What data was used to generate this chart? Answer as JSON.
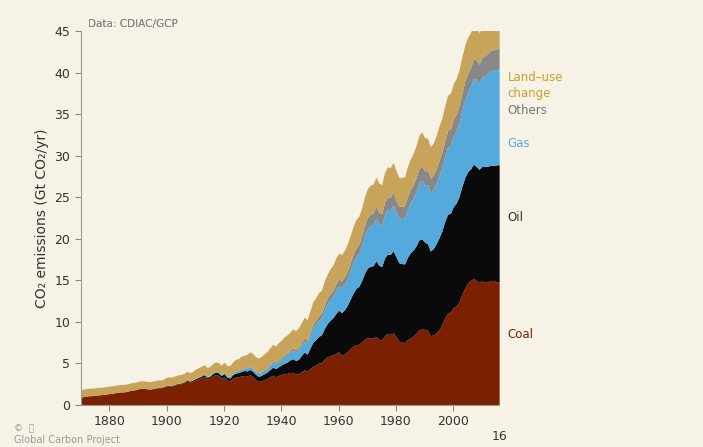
{
  "years": [
    1870,
    1871,
    1872,
    1873,
    1874,
    1875,
    1876,
    1877,
    1878,
    1879,
    1880,
    1881,
    1882,
    1883,
    1884,
    1885,
    1886,
    1887,
    1888,
    1889,
    1890,
    1891,
    1892,
    1893,
    1894,
    1895,
    1896,
    1897,
    1898,
    1899,
    1900,
    1901,
    1902,
    1903,
    1904,
    1905,
    1906,
    1907,
    1908,
    1909,
    1910,
    1911,
    1912,
    1913,
    1914,
    1915,
    1916,
    1917,
    1918,
    1919,
    1920,
    1921,
    1922,
    1923,
    1924,
    1925,
    1926,
    1927,
    1928,
    1929,
    1930,
    1931,
    1932,
    1933,
    1934,
    1935,
    1936,
    1937,
    1938,
    1939,
    1940,
    1941,
    1942,
    1943,
    1944,
    1945,
    1946,
    1947,
    1948,
    1949,
    1950,
    1951,
    1952,
    1953,
    1954,
    1955,
    1956,
    1957,
    1958,
    1959,
    1960,
    1961,
    1962,
    1963,
    1964,
    1965,
    1966,
    1967,
    1968,
    1969,
    1970,
    1971,
    1972,
    1973,
    1974,
    1975,
    1976,
    1977,
    1978,
    1979,
    1980,
    1981,
    1982,
    1983,
    1984,
    1985,
    1986,
    1987,
    1988,
    1989,
    1990,
    1991,
    1992,
    1993,
    1994,
    1995,
    1996,
    1997,
    1998,
    1999,
    2000,
    2001,
    2002,
    2003,
    2004,
    2005,
    2006,
    2007,
    2008,
    2009,
    2010,
    2011,
    2012,
    2013,
    2014,
    2015,
    2016
  ],
  "land_use": [
    0.9,
    0.9,
    0.9,
    0.9,
    0.9,
    0.9,
    0.9,
    0.9,
    0.9,
    0.9,
    0.9,
    0.9,
    0.9,
    0.9,
    0.9,
    0.9,
    0.9,
    0.9,
    0.9,
    0.9,
    0.9,
    0.9,
    0.9,
    0.9,
    0.9,
    0.9,
    0.9,
    0.9,
    0.9,
    0.9,
    1.0,
    1.0,
    1.0,
    1.0,
    1.0,
    1.0,
    1.0,
    1.0,
    1.0,
    1.0,
    1.1,
    1.1,
    1.1,
    1.1,
    1.1,
    1.1,
    1.1,
    1.1,
    1.1,
    1.1,
    1.2,
    1.2,
    1.3,
    1.3,
    1.4,
    1.4,
    1.5,
    1.5,
    1.6,
    1.7,
    1.7,
    1.7,
    1.8,
    1.8,
    1.9,
    1.9,
    2.0,
    2.0,
    2.0,
    2.1,
    2.1,
    2.2,
    2.2,
    2.2,
    2.3,
    2.3,
    2.4,
    2.4,
    2.5,
    2.5,
    2.6,
    2.7,
    2.7,
    2.8,
    2.8,
    2.9,
    2.9,
    3.0,
    3.0,
    3.1,
    3.1,
    3.2,
    3.2,
    3.3,
    3.3,
    3.4,
    3.4,
    3.4,
    3.4,
    3.5,
    3.5,
    3.5,
    3.5,
    3.5,
    3.5,
    3.5,
    3.6,
    3.6,
    3.6,
    3.6,
    3.6,
    3.5,
    3.5,
    3.5,
    3.6,
    3.7,
    3.8,
    3.9,
    4.0,
    4.1,
    4.0,
    3.9,
    3.8,
    3.9,
    4.0,
    4.1,
    4.1,
    4.2,
    4.3,
    4.3,
    4.3,
    4.3,
    4.3,
    4.4,
    4.4,
    4.3,
    4.2,
    4.1,
    4.0,
    3.8,
    3.7,
    3.7,
    3.7,
    3.7,
    3.7,
    3.8,
    3.8
  ],
  "coal": [
    0.91,
    0.96,
    1.03,
    1.07,
    1.07,
    1.13,
    1.16,
    1.19,
    1.22,
    1.27,
    1.33,
    1.37,
    1.43,
    1.48,
    1.51,
    1.52,
    1.57,
    1.67,
    1.75,
    1.78,
    1.88,
    1.94,
    1.94,
    1.89,
    1.84,
    1.89,
    1.97,
    2.03,
    2.01,
    2.14,
    2.25,
    2.25,
    2.26,
    2.39,
    2.47,
    2.5,
    2.63,
    2.85,
    2.7,
    2.81,
    2.97,
    3.1,
    3.24,
    3.41,
    3.1,
    3.18,
    3.49,
    3.61,
    3.52,
    3.17,
    3.35,
    2.93,
    2.82,
    3.18,
    3.32,
    3.34,
    3.45,
    3.52,
    3.45,
    3.58,
    3.36,
    3.0,
    2.78,
    2.86,
    3.0,
    3.13,
    3.35,
    3.54,
    3.35,
    3.51,
    3.64,
    3.72,
    3.76,
    3.87,
    3.88,
    3.68,
    3.74,
    3.99,
    4.18,
    4.01,
    4.32,
    4.61,
    4.76,
    4.99,
    5.04,
    5.45,
    5.76,
    5.87,
    5.99,
    6.2,
    6.35,
    5.97,
    6.08,
    6.36,
    6.72,
    7.04,
    7.22,
    7.26,
    7.53,
    7.88,
    8.04,
    8.07,
    8.0,
    8.21,
    7.85,
    7.75,
    8.29,
    8.52,
    8.45,
    8.64,
    8.16,
    7.65,
    7.55,
    7.46,
    7.85,
    8.02,
    8.26,
    8.58,
    9.04,
    9.09,
    9.07,
    8.96,
    8.29,
    8.4,
    8.63,
    9.01,
    9.68,
    10.42,
    11.03,
    11.18,
    11.68,
    11.9,
    12.37,
    13.3,
    14.01,
    14.66,
    14.97,
    15.17,
    14.96,
    14.72,
    14.9,
    14.74,
    14.78,
    14.96,
    14.95,
    14.8,
    14.75
  ],
  "oil": [
    0.0,
    0.0,
    0.0,
    0.0,
    0.0,
    0.0,
    0.0,
    0.0,
    0.0,
    0.0,
    0.0,
    0.0,
    0.0,
    0.0,
    0.01,
    0.01,
    0.01,
    0.01,
    0.01,
    0.01,
    0.02,
    0.02,
    0.02,
    0.02,
    0.02,
    0.03,
    0.03,
    0.03,
    0.04,
    0.04,
    0.05,
    0.05,
    0.06,
    0.07,
    0.08,
    0.09,
    0.1,
    0.11,
    0.12,
    0.13,
    0.15,
    0.17,
    0.18,
    0.2,
    0.19,
    0.21,
    0.25,
    0.29,
    0.31,
    0.33,
    0.38,
    0.37,
    0.38,
    0.43,
    0.47,
    0.52,
    0.55,
    0.58,
    0.61,
    0.65,
    0.64,
    0.63,
    0.62,
    0.66,
    0.72,
    0.79,
    0.87,
    0.97,
    0.97,
    1.06,
    1.15,
    1.26,
    1.37,
    1.51,
    1.65,
    1.63,
    1.73,
    1.96,
    2.15,
    2.07,
    2.51,
    2.9,
    3.07,
    3.23,
    3.38,
    3.73,
    4.01,
    4.28,
    4.49,
    4.79,
    5.03,
    5.11,
    5.36,
    5.59,
    5.99,
    6.39,
    6.77,
    6.99,
    7.41,
    7.94,
    8.41,
    8.6,
    8.73,
    9.13,
    8.95,
    8.88,
    9.38,
    9.61,
    9.63,
    9.92,
    9.66,
    9.44,
    9.44,
    9.5,
    9.91,
    10.28,
    10.39,
    10.54,
    10.81,
    10.91,
    10.51,
    10.42,
    10.22,
    10.39,
    10.77,
    11.1,
    11.23,
    11.66,
    11.9,
    11.91,
    12.2,
    12.39,
    12.7,
    13.01,
    13.34,
    13.41,
    13.43,
    13.82,
    13.73,
    13.65,
    13.81,
    13.97,
    13.95,
    13.88,
    13.87,
    14.08,
    14.18
  ],
  "gas": [
    0.0,
    0.0,
    0.0,
    0.0,
    0.0,
    0.0,
    0.0,
    0.0,
    0.0,
    0.0,
    0.0,
    0.0,
    0.0,
    0.0,
    0.0,
    0.0,
    0.0,
    0.0,
    0.0,
    0.0,
    0.0,
    0.0,
    0.0,
    0.0,
    0.0,
    0.0,
    0.0,
    0.0,
    0.0,
    0.0,
    0.02,
    0.02,
    0.02,
    0.02,
    0.03,
    0.03,
    0.04,
    0.04,
    0.04,
    0.05,
    0.06,
    0.06,
    0.07,
    0.07,
    0.07,
    0.08,
    0.1,
    0.11,
    0.12,
    0.13,
    0.16,
    0.16,
    0.17,
    0.2,
    0.22,
    0.24,
    0.27,
    0.29,
    0.31,
    0.35,
    0.35,
    0.33,
    0.33,
    0.37,
    0.41,
    0.45,
    0.52,
    0.58,
    0.58,
    0.65,
    0.7,
    0.78,
    0.85,
    0.93,
    1.02,
    1.04,
    1.11,
    1.22,
    1.35,
    1.3,
    1.55,
    1.77,
    1.87,
    1.97,
    2.05,
    2.25,
    2.41,
    2.55,
    2.65,
    2.82,
    2.96,
    3.0,
    3.11,
    3.24,
    3.44,
    3.65,
    3.85,
    3.97,
    4.21,
    4.5,
    4.77,
    4.92,
    5.0,
    5.17,
    5.04,
    5.01,
    5.26,
    5.43,
    5.41,
    5.52,
    5.31,
    5.37,
    5.45,
    5.55,
    5.82,
    6.06,
    6.22,
    6.56,
    6.85,
    7.02,
    6.88,
    7.14,
    7.09,
    7.13,
    7.27,
    7.53,
    7.64,
    7.82,
    8.11,
    8.19,
    8.5,
    8.66,
    8.88,
    9.05,
    9.4,
    9.63,
    9.97,
    10.33,
    10.53,
    10.33,
    10.75,
    10.94,
    11.19,
    11.39,
    11.51,
    11.52,
    11.55
  ],
  "others": [
    0.0,
    0.0,
    0.0,
    0.0,
    0.0,
    0.0,
    0.0,
    0.0,
    0.0,
    0.0,
    0.0,
    0.0,
    0.0,
    0.0,
    0.0,
    0.0,
    0.0,
    0.0,
    0.0,
    0.0,
    0.0,
    0.0,
    0.0,
    0.0,
    0.0,
    0.0,
    0.0,
    0.0,
    0.0,
    0.0,
    0.0,
    0.0,
    0.0,
    0.0,
    0.0,
    0.0,
    0.0,
    0.0,
    0.0,
    0.0,
    0.0,
    0.01,
    0.01,
    0.01,
    0.01,
    0.01,
    0.01,
    0.02,
    0.02,
    0.02,
    0.03,
    0.03,
    0.03,
    0.04,
    0.04,
    0.05,
    0.06,
    0.07,
    0.07,
    0.08,
    0.09,
    0.09,
    0.09,
    0.1,
    0.11,
    0.12,
    0.14,
    0.16,
    0.16,
    0.17,
    0.19,
    0.21,
    0.22,
    0.24,
    0.26,
    0.27,
    0.29,
    0.33,
    0.36,
    0.35,
    0.41,
    0.46,
    0.49,
    0.52,
    0.55,
    0.6,
    0.64,
    0.68,
    0.71,
    0.76,
    0.8,
    0.81,
    0.85,
    0.88,
    0.94,
    1.0,
    1.06,
    1.1,
    1.17,
    1.25,
    1.31,
    1.34,
    1.37,
    1.42,
    1.39,
    1.37,
    1.45,
    1.49,
    1.48,
    1.52,
    1.46,
    1.44,
    1.44,
    1.46,
    1.53,
    1.58,
    1.61,
    1.67,
    1.74,
    1.76,
    1.7,
    1.72,
    1.7,
    1.71,
    1.76,
    1.82,
    1.85,
    1.9,
    1.96,
    1.97,
    2.02,
    2.06,
    2.11,
    2.15,
    2.21,
    2.25,
    2.28,
    2.35,
    2.37,
    2.33,
    2.37,
    2.4,
    2.43,
    2.45,
    2.46,
    2.47,
    2.48
  ],
  "coal_color": "#7B2000",
  "oil_color": "#0A0A0A",
  "gas_color": "#55AADD",
  "others_color": "#888888",
  "land_use_color": "#C8A45A",
  "bg_color": "#F7F2E6",
  "ylabel": "CO₂ emissions (Gt CO₂/yr)",
  "data_note": "Data: CDIAC/GCP",
  "source_note": "Global Carbon Project",
  "xlim": [
    1870,
    2016
  ],
  "ylim": [
    0,
    45
  ],
  "yticks": [
    0,
    5,
    10,
    15,
    20,
    25,
    30,
    35,
    40,
    45
  ],
  "xticks": [
    1880,
    1900,
    1920,
    1940,
    1960,
    1980,
    2000
  ],
  "xtick_labels": [
    "1880",
    "1900",
    "1920",
    "1940",
    "1960",
    "1980",
    "2000"
  ],
  "last_label": "16"
}
